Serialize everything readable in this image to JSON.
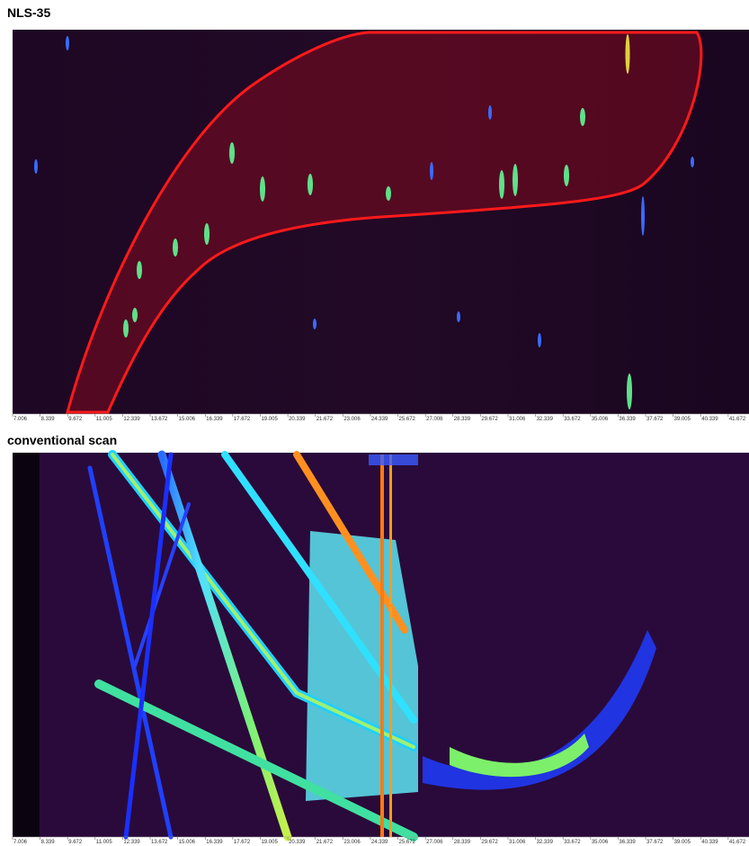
{
  "chart_data": [
    {
      "type": "heatmap",
      "title": "NLS-35",
      "xlim": [
        7.006,
        42.68
      ],
      "xticks": [
        7.006,
        8.339,
        9.672,
        11.005,
        12.339,
        13.672,
        15.006,
        16.339,
        17.672,
        19.005,
        20.339,
        21.672,
        23.006,
        24.339,
        25.672,
        27.006,
        28.339,
        29.672,
        31.006,
        32.339,
        33.672,
        35.006,
        36.339,
        37.672,
        39.005,
        40.339,
        41.672
      ]
    },
    {
      "type": "heatmap",
      "title": "conventional scan",
      "xlim": [
        7.006,
        42.68
      ],
      "xticks": [
        7.006,
        8.339,
        9.672,
        11.005,
        12.339,
        13.672,
        15.006,
        16.339,
        17.672,
        19.005,
        20.339,
        21.672,
        23.006,
        24.339,
        25.672,
        27.006,
        28.339,
        29.672,
        31.006,
        32.339,
        33.672,
        35.006,
        36.339,
        37.672,
        39.005,
        40.339,
        41.672
      ]
    }
  ]
}
